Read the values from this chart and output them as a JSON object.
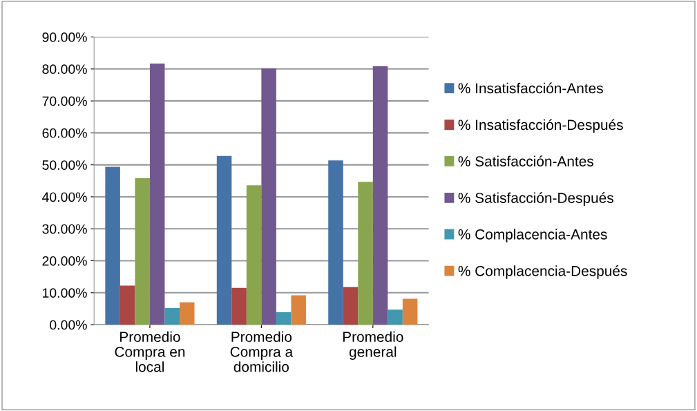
{
  "chart_data": {
    "type": "bar",
    "categories": [
      "Promedio Compra en local",
      "Promedio Compra a domicilio",
      "Promedio general"
    ],
    "series": [
      {
        "name": "% Insatisfacción-Antes",
        "color": "#4572a7",
        "values": [
          49.4,
          52.8,
          51.4
        ]
      },
      {
        "name": "% Insatisfacción-Después",
        "color": "#aa4643",
        "values": [
          12.2,
          11.5,
          11.8
        ]
      },
      {
        "name": "% Satisfacción-Antes",
        "color": "#89a54e",
        "values": [
          45.8,
          43.6,
          44.7
        ]
      },
      {
        "name": "% Satisfacción-Después",
        "color": "#71588f",
        "values": [
          81.7,
          80.2,
          80.9
        ]
      },
      {
        "name": "% Complacencia-Antes",
        "color": "#4198af",
        "values": [
          5.2,
          3.9,
          4.7
        ]
      },
      {
        "name": "% Complacencia-Después",
        "color": "#db843d",
        "values": [
          7.0,
          9.2,
          8.1
        ]
      }
    ],
    "ylim": [
      0,
      90
    ],
    "yticks": [
      {
        "value": 0,
        "label": "0.00%"
      },
      {
        "value": 10,
        "label": "10.00%"
      },
      {
        "value": 20,
        "label": "20.00%"
      },
      {
        "value": 30,
        "label": "30.00%"
      },
      {
        "value": 40,
        "label": "40.00%"
      },
      {
        "value": 50,
        "label": "50.00%"
      },
      {
        "value": 60,
        "label": "60.00%"
      },
      {
        "value": 70,
        "label": "70.00%"
      },
      {
        "value": 80,
        "label": "80.00%"
      },
      {
        "value": 90,
        "label": "90.00%"
      }
    ],
    "grid": "y",
    "legend": "right"
  }
}
